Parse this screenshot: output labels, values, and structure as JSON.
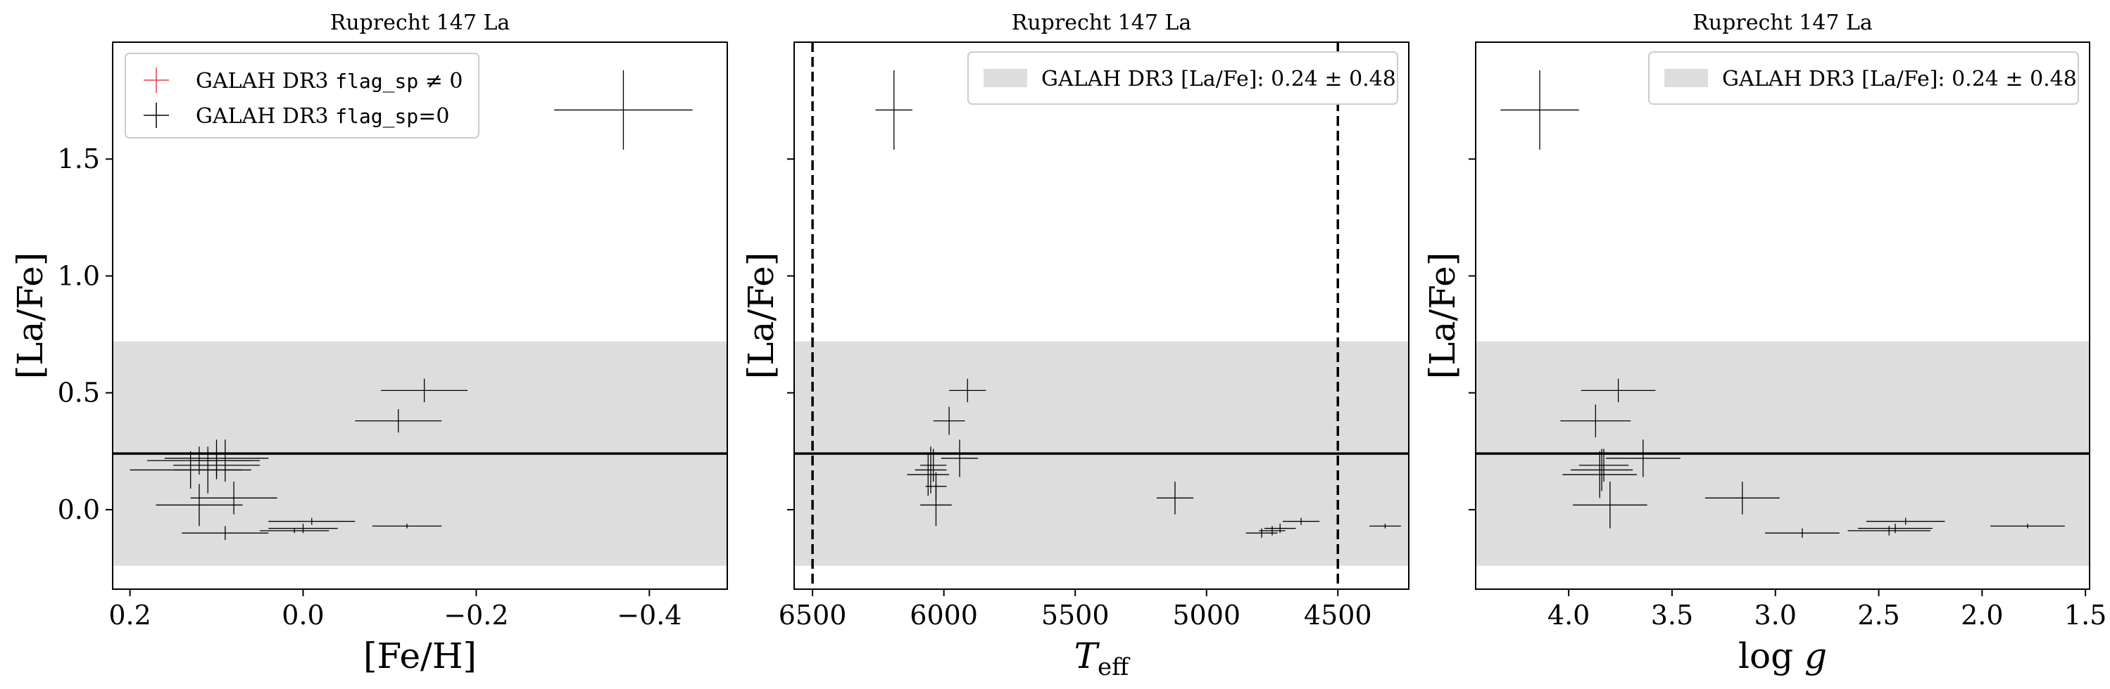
{
  "chart_data": [
    {
      "type": "scatter",
      "title": "Ruprecht 147 La",
      "xlabel": "[Fe/H]",
      "ylabel": "[La/Fe]",
      "xlim": [
        0.22,
        -0.49
      ],
      "ylim": [
        -0.34,
        2.0
      ],
      "xticks": [
        0.2,
        0.0,
        -0.2,
        -0.4
      ],
      "xtick_labels": [
        "0.2",
        "0.0",
        "−0.2",
        "−0.4"
      ],
      "yticks": [
        0.0,
        0.5,
        1.0,
        1.5
      ],
      "ytick_labels": [
        "0.0",
        "0.5",
        "1.0",
        "1.5"
      ],
      "mean_line": 0.24,
      "band": [
        -0.24,
        0.72
      ],
      "legend": {
        "position": "top-left",
        "entries": [
          {
            "prefix": "GALAH DR3 ",
            "code": "flag_sp",
            "suffix": " ≠ 0",
            "color": "#e8414f"
          },
          {
            "prefix": "GALAH DR3 ",
            "code": "flag_sp",
            "suffix": "=0",
            "color": "#000000"
          }
        ]
      },
      "points": [
        {
          "x": 0.13,
          "y": 0.17,
          "xerr": 0.07,
          "yerr": 0.08
        },
        {
          "x": 0.12,
          "y": 0.21,
          "xerr": 0.06,
          "yerr": 0.06
        },
        {
          "x": 0.11,
          "y": 0.17,
          "xerr": 0.04,
          "yerr": 0.1
        },
        {
          "x": 0.1,
          "y": 0.19,
          "xerr": 0.05,
          "yerr": 0.06
        },
        {
          "x": 0.1,
          "y": 0.22,
          "xerr": 0.06,
          "yerr": 0.08
        },
        {
          "x": 0.09,
          "y": 0.21,
          "xerr": 0.04,
          "yerr": 0.09
        },
        {
          "x": 0.12,
          "y": 0.02,
          "xerr": 0.05,
          "yerr": 0.09
        },
        {
          "x": 0.08,
          "y": 0.05,
          "xerr": 0.05,
          "yerr": 0.07
        },
        {
          "x": 0.09,
          "y": -0.1,
          "xerr": 0.05,
          "yerr": 0.03
        },
        {
          "x": 0.0,
          "y": -0.08,
          "xerr": 0.04,
          "yerr": 0.02
        },
        {
          "x": 0.01,
          "y": -0.09,
          "xerr": 0.04,
          "yerr": 0.01
        },
        {
          "x": -0.01,
          "y": -0.05,
          "xerr": 0.05,
          "yerr": 0.015
        },
        {
          "x": -0.12,
          "y": -0.07,
          "xerr": 0.04,
          "yerr": 0.01
        },
        {
          "x": -0.11,
          "y": 0.38,
          "xerr": 0.05,
          "yerr": 0.05
        },
        {
          "x": -0.14,
          "y": 0.51,
          "xerr": 0.05,
          "yerr": 0.05
        },
        {
          "x": -0.37,
          "y": 1.71,
          "xerr": 0.08,
          "yerr": 0.17
        }
      ]
    },
    {
      "type": "scatter",
      "title": "Ruprecht 147 La",
      "xlabel": "T_eff",
      "ylabel": "[La/Fe]",
      "xlim": [
        6570,
        4230
      ],
      "ylim": [
        -0.34,
        2.0
      ],
      "xticks": [
        6500,
        6000,
        5500,
        5000,
        4500
      ],
      "xtick_labels": [
        "6500",
        "6000",
        "5500",
        "5000",
        "4500"
      ],
      "yticks": [
        0.0,
        0.5,
        1.0,
        1.5
      ],
      "mean_line": 0.24,
      "band": [
        -0.24,
        0.72
      ],
      "vlines": [
        6500,
        4500
      ],
      "legend": {
        "position": "top-right",
        "entries": [
          {
            "text": "GALAH DR3 [La/Fe]: 0.24 ± 0.48",
            "color": "#dddddd"
          }
        ]
      },
      "points": [
        {
          "x": 6060,
          "y": 0.15,
          "xerr": 80,
          "yerr": 0.09
        },
        {
          "x": 6050,
          "y": 0.17,
          "xerr": 60,
          "yerr": 0.1
        },
        {
          "x": 6040,
          "y": 0.19,
          "xerr": 50,
          "yerr": 0.07
        },
        {
          "x": 6030,
          "y": 0.1,
          "xerr": 40,
          "yerr": 0.06
        },
        {
          "x": 6030,
          "y": 0.02,
          "xerr": 60,
          "yerr": 0.09
        },
        {
          "x": 5980,
          "y": 0.38,
          "xerr": 60,
          "yerr": 0.06
        },
        {
          "x": 5940,
          "y": 0.22,
          "xerr": 70,
          "yerr": 0.08
        },
        {
          "x": 5910,
          "y": 0.51,
          "xerr": 70,
          "yerr": 0.05
        },
        {
          "x": 6190,
          "y": 1.71,
          "xerr": 70,
          "yerr": 0.17
        },
        {
          "x": 5120,
          "y": 0.05,
          "xerr": 70,
          "yerr": 0.07
        },
        {
          "x": 4790,
          "y": -0.1,
          "xerr": 60,
          "yerr": 0.02
        },
        {
          "x": 4750,
          "y": -0.09,
          "xerr": 50,
          "yerr": 0.02
        },
        {
          "x": 4720,
          "y": -0.08,
          "xerr": 60,
          "yerr": 0.02
        },
        {
          "x": 4640,
          "y": -0.05,
          "xerr": 70,
          "yerr": 0.015
        },
        {
          "x": 4320,
          "y": -0.07,
          "xerr": 60,
          "yerr": 0.01
        }
      ]
    },
    {
      "type": "scatter",
      "title": "Ruprecht 147 La",
      "xlabel": "log g",
      "ylabel": "[La/Fe]",
      "xlim": [
        4.45,
        1.48
      ],
      "ylim": [
        -0.34,
        2.0
      ],
      "xticks": [
        4.0,
        3.5,
        3.0,
        2.5,
        2.0,
        1.5
      ],
      "xtick_labels": [
        "4.0",
        "3.5",
        "3.0",
        "2.5",
        "2.0",
        "1.5"
      ],
      "yticks": [
        0.0,
        0.5,
        1.0,
        1.5
      ],
      "mean_line": 0.24,
      "band": [
        -0.24,
        0.72
      ],
      "legend": {
        "position": "top-right",
        "entries": [
          {
            "text": "GALAH DR3 [La/Fe]: 0.24 ± 0.48",
            "color": "#dddddd"
          }
        ]
      },
      "points": [
        {
          "x": 3.87,
          "y": 0.38,
          "xerr": 0.17,
          "yerr": 0.07
        },
        {
          "x": 3.76,
          "y": 0.51,
          "xerr": 0.18,
          "yerr": 0.05
        },
        {
          "x": 3.85,
          "y": 0.15,
          "xerr": 0.18,
          "yerr": 0.1
        },
        {
          "x": 3.84,
          "y": 0.17,
          "xerr": 0.15,
          "yerr": 0.09
        },
        {
          "x": 3.83,
          "y": 0.19,
          "xerr": 0.12,
          "yerr": 0.07
        },
        {
          "x": 3.8,
          "y": 0.02,
          "xerr": 0.18,
          "yerr": 0.1
        },
        {
          "x": 3.64,
          "y": 0.22,
          "xerr": 0.18,
          "yerr": 0.08
        },
        {
          "x": 4.14,
          "y": 1.71,
          "xerr": 0.19,
          "yerr": 0.17
        },
        {
          "x": 3.16,
          "y": 0.05,
          "xerr": 0.18,
          "yerr": 0.07
        },
        {
          "x": 2.87,
          "y": -0.1,
          "xerr": 0.18,
          "yerr": 0.02
        },
        {
          "x": 2.45,
          "y": -0.09,
          "xerr": 0.2,
          "yerr": 0.02
        },
        {
          "x": 2.42,
          "y": -0.08,
          "xerr": 0.18,
          "yerr": 0.02
        },
        {
          "x": 2.37,
          "y": -0.05,
          "xerr": 0.19,
          "yerr": 0.015
        },
        {
          "x": 1.78,
          "y": -0.07,
          "xerr": 0.18,
          "yerr": 0.01
        }
      ]
    }
  ]
}
